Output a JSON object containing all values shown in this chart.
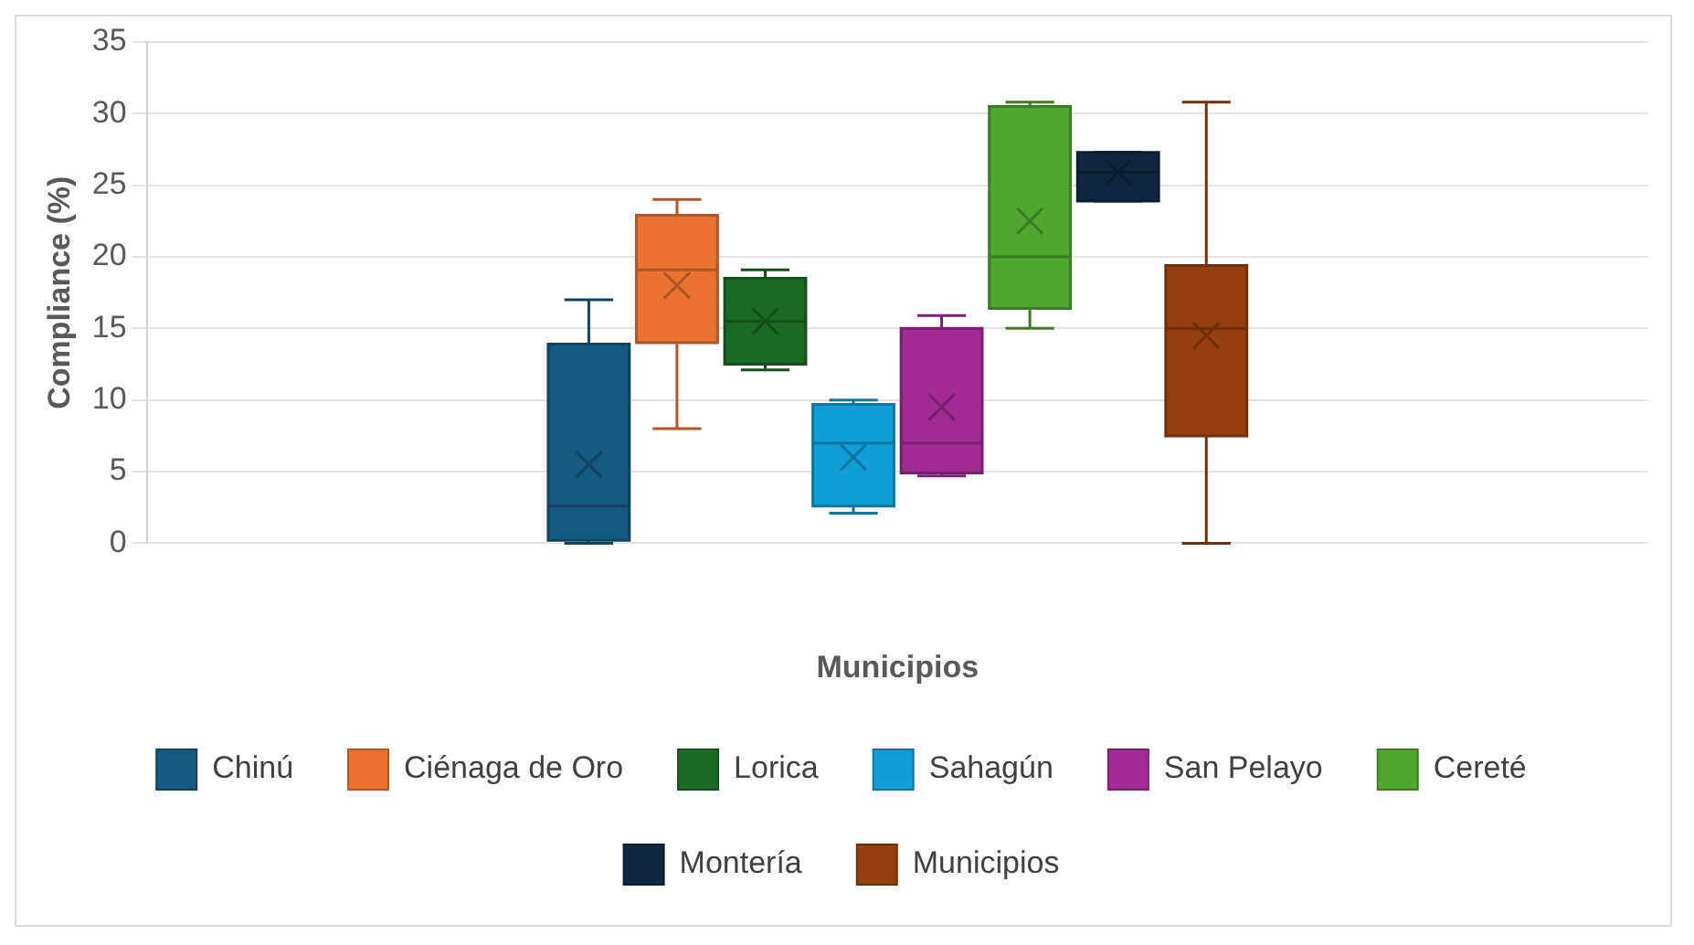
{
  "chart_data": {
    "type": "box",
    "xlabel": "Municipios",
    "ylabel": "Compliance (%)",
    "categories": [
      null
    ],
    "ylim": [
      0,
      35
    ],
    "yticks": [
      0,
      5,
      10,
      15,
      20,
      25,
      30,
      35
    ],
    "grid": "y",
    "legend": "bottom",
    "series": [
      {
        "name": "Chinú",
        "color": "#155a7f",
        "boxes": [
          {
            "low": 0,
            "q1": 0.2,
            "median": 2.6,
            "q3": 13.9,
            "high": 17,
            "mean": 5.5
          }
        ]
      },
      {
        "name": "Ciénaga de Oro",
        "color": "#e97132",
        "boxes": [
          {
            "low": 8,
            "q1": 14,
            "median": 19.1,
            "q3": 22.9,
            "high": 24,
            "mean": 18
          }
        ]
      },
      {
        "name": "Lorica",
        "color": "#196b24",
        "boxes": [
          {
            "low": 12.1,
            "q1": 12.5,
            "median": 15.5,
            "q3": 18.5,
            "high": 19.1,
            "mean": 15.5
          }
        ]
      },
      {
        "name": "Sahagún",
        "color": "#0f9ed5",
        "boxes": [
          {
            "low": 2.1,
            "q1": 2.6,
            "median": 7,
            "q3": 9.7,
            "high": 10,
            "mean": 6
          }
        ]
      },
      {
        "name": "San Pelayo",
        "color": "#a02b93",
        "boxes": [
          {
            "low": 4.7,
            "q1": 4.9,
            "median": 7,
            "q3": 15,
            "high": 15.9,
            "mean": 9.5
          }
        ]
      },
      {
        "name": "Cereté",
        "color": "#4ea72e",
        "boxes": [
          {
            "low": 15,
            "q1": 16.4,
            "median": 20,
            "q3": 30.5,
            "high": 30.8,
            "mean": 22.5
          }
        ]
      },
      {
        "name": "Montería",
        "color": "#0e2841",
        "boxes": [
          {
            "low": 23.9,
            "q1": 23.9,
            "median": 25.9,
            "q3": 27.3,
            "high": 27.3,
            "mean": 25.9
          }
        ]
      },
      {
        "name": "Municipios",
        "color": "#953f0f",
        "boxes": [
          {
            "low": 0,
            "q1": 7.5,
            "median": 15,
            "q3": 19.4,
            "high": 30.8,
            "mean": 14.5
          }
        ]
      }
    ]
  }
}
